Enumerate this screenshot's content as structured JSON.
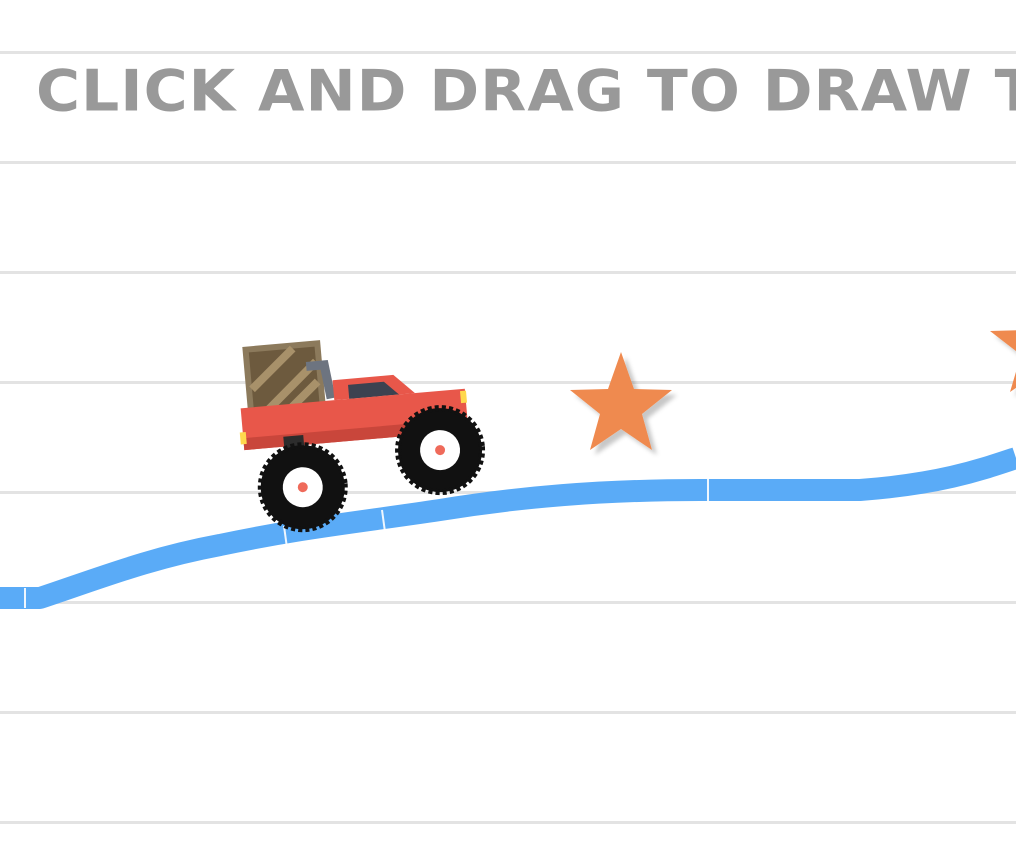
{
  "game": {
    "instruction": "CLICK AND DRAG TO DRAW THE R",
    "colors": {
      "paper": "#ffffff",
      "rule_line": "#e3e3e3",
      "instruction_text": "#999999",
      "drawn_road": "#5aabf7",
      "truck_body": "#e8574a",
      "star": "#ef8a4f",
      "crate": "#8c7a5c",
      "tire": "#111111"
    },
    "icons": {
      "player": "monster-truck-icon",
      "cargo": "wooden-crate-icon",
      "collectible": "star-icon"
    },
    "stars_visible": 2
  }
}
